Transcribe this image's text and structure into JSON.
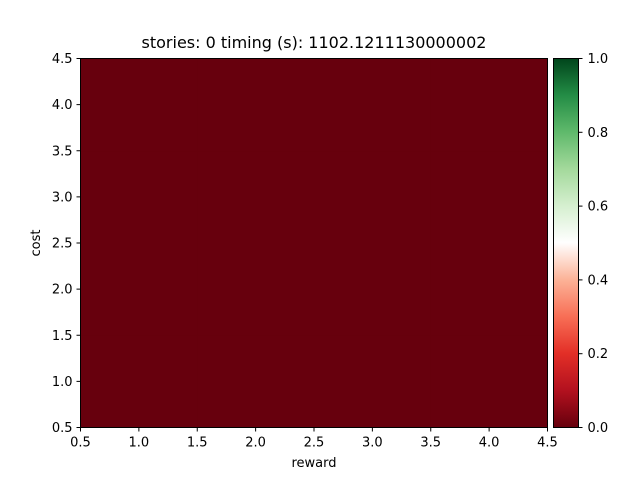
{
  "chart_data": {
    "type": "heatmap",
    "title": "stories: 0 timing (s): 1102.1211130000002",
    "xlabel": "reward",
    "ylabel": "cost",
    "xlim": [
      0.5,
      4.5
    ],
    "ylim": [
      0.5,
      4.5
    ],
    "x_ticks": [
      0.5,
      1.0,
      1.5,
      2.0,
      2.5,
      3.0,
      3.5,
      4.0,
      4.5
    ],
    "x_tick_labels": [
      "0.5",
      "1.0",
      "1.5",
      "2.0",
      "2.5",
      "3.0",
      "3.5",
      "4.0",
      "4.5"
    ],
    "y_ticks": [
      0.5,
      1.0,
      1.5,
      2.0,
      2.5,
      3.0,
      3.5,
      4.0,
      4.5
    ],
    "y_tick_labels": [
      "0.5",
      "1.0",
      "1.5",
      "2.0",
      "2.5",
      "3.0",
      "3.5",
      "4.0",
      "4.5"
    ],
    "x_categories": [
      1,
      2,
      3,
      4
    ],
    "y_categories": [
      1,
      2,
      3,
      4
    ],
    "values": [
      [
        0,
        0,
        0,
        0
      ],
      [
        0,
        0,
        0,
        0
      ],
      [
        0,
        0,
        0,
        0
      ],
      [
        0,
        0,
        0,
        0
      ]
    ],
    "colormap": "RdYlGn-like (red-white-green)",
    "colorbar": {
      "vmin": 0.0,
      "vmax": 1.0,
      "ticks": [
        0.0,
        0.2,
        0.4,
        0.6,
        0.8,
        1.0
      ],
      "tick_labels": [
        "0.0",
        "0.2",
        "0.4",
        "0.6",
        "0.8",
        "1.0"
      ],
      "stops": [
        {
          "value": 0.0,
          "color": "#67000d"
        },
        {
          "value": 0.1,
          "color": "#b3111f"
        },
        {
          "value": 0.2,
          "color": "#e32f27"
        },
        {
          "value": 0.3,
          "color": "#f86f56"
        },
        {
          "value": 0.4,
          "color": "#fcb398"
        },
        {
          "value": 0.5,
          "color": "#ffffff"
        },
        {
          "value": 0.6,
          "color": "#d5efcf"
        },
        {
          "value": 0.7,
          "color": "#a3d99b"
        },
        {
          "value": 0.8,
          "color": "#5fb96b"
        },
        {
          "value": 0.9,
          "color": "#238c45"
        },
        {
          "value": 1.0,
          "color": "#00441b"
        }
      ]
    },
    "grid": false,
    "legend": "none"
  }
}
